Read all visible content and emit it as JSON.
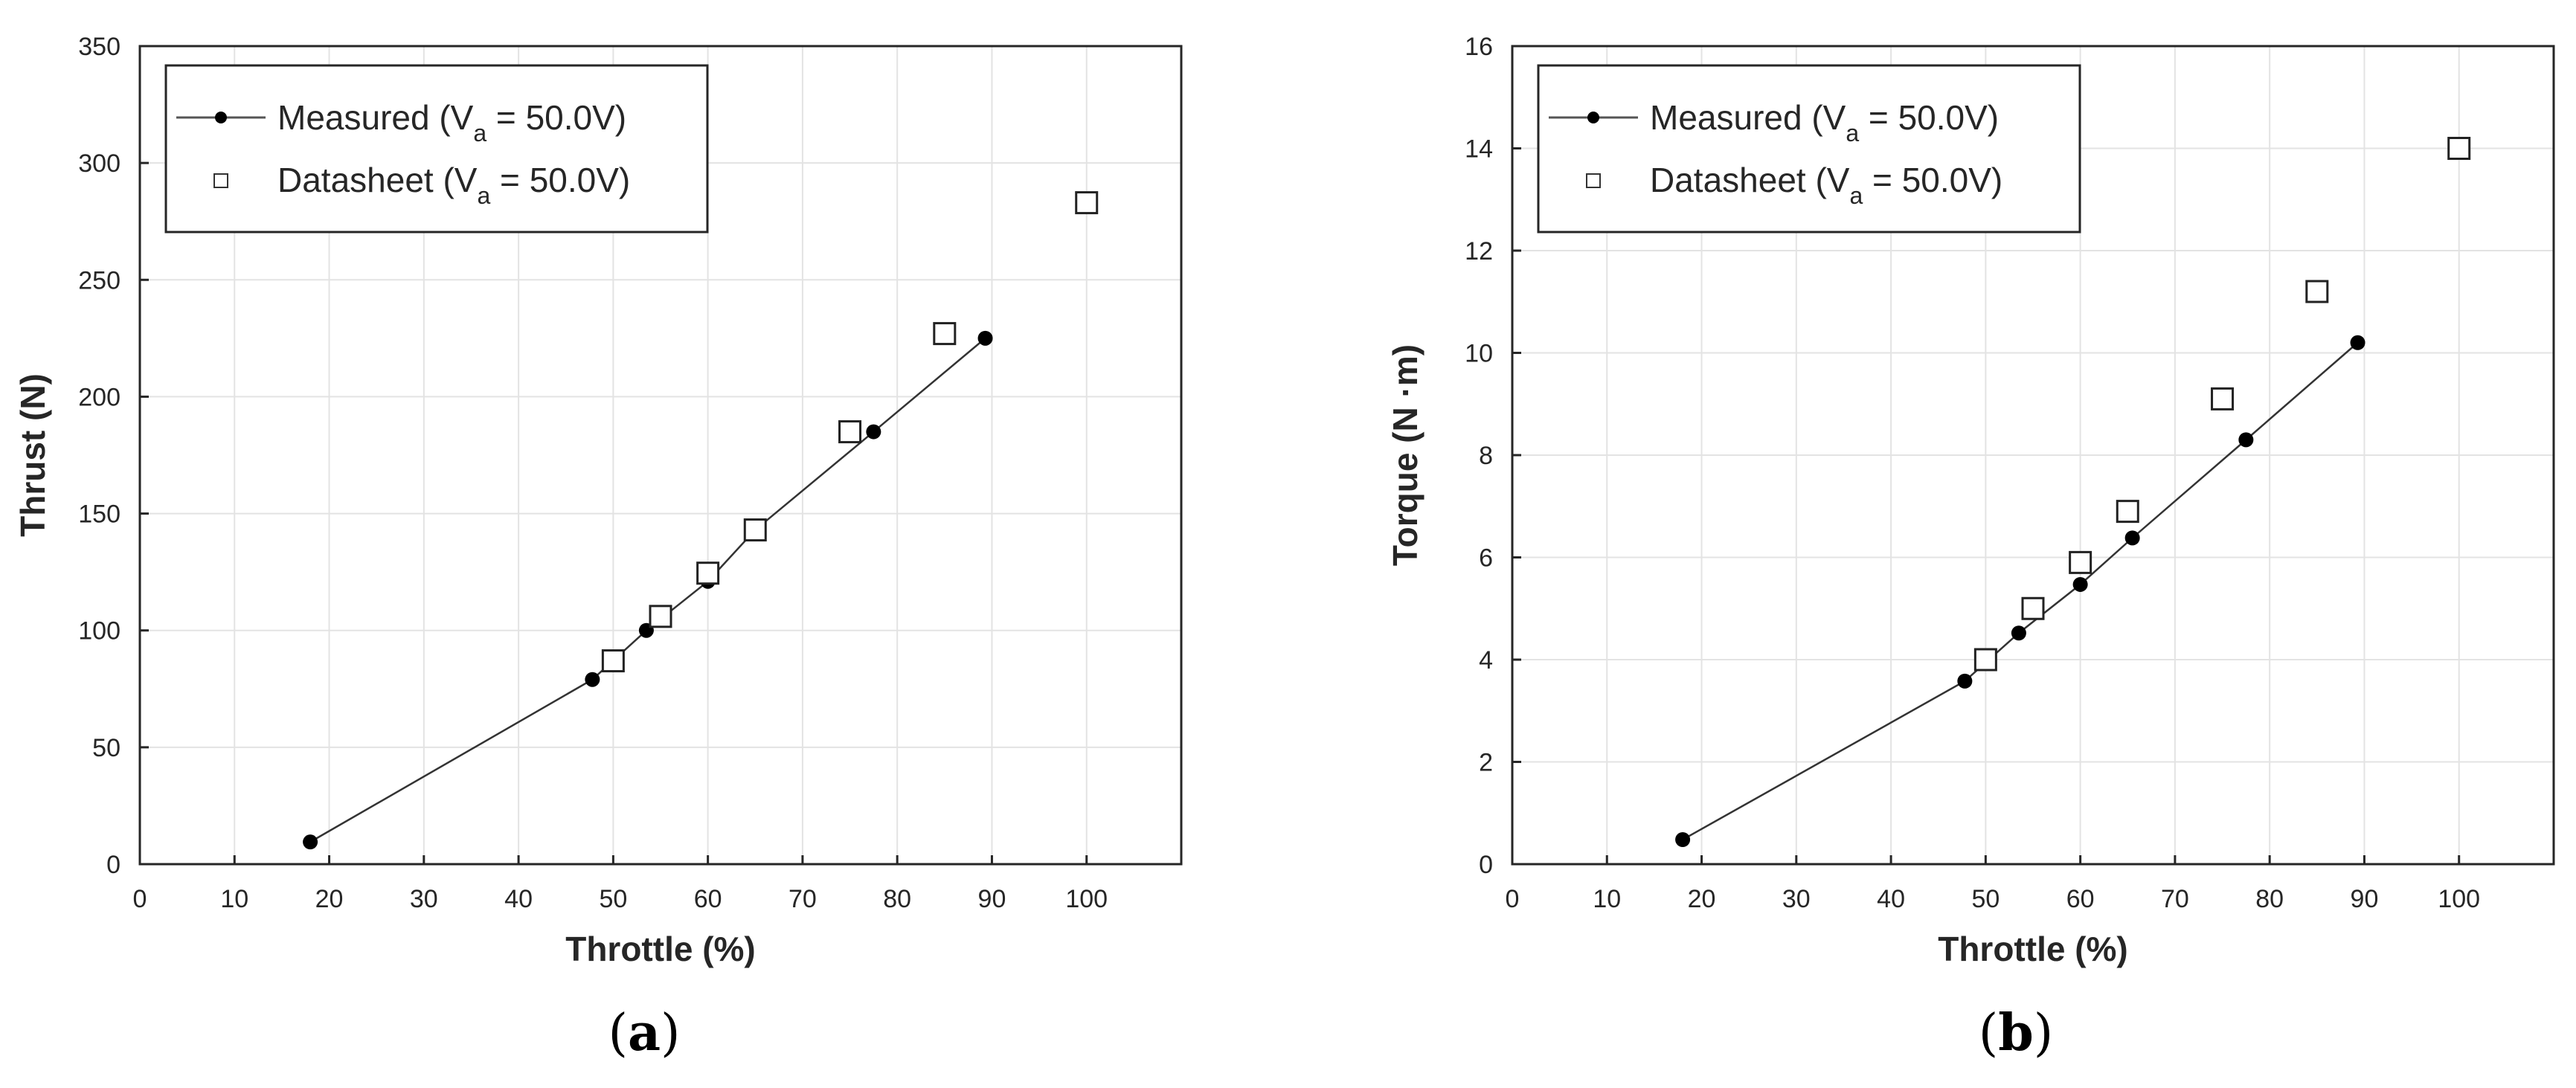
{
  "chart_data": [
    {
      "type": "scatter",
      "caption": {
        "open": "(",
        "letter": "a",
        "close": ")"
      },
      "xlabel": "Throttle (%)",
      "ylabel": "Thrust (N)",
      "xlim": [
        0,
        110
      ],
      "ylim": [
        0,
        350
      ],
      "xticks": [
        0,
        10,
        20,
        30,
        40,
        50,
        60,
        70,
        80,
        90,
        100
      ],
      "yticks": [
        0,
        50,
        100,
        150,
        200,
        250,
        300,
        350
      ],
      "grid": true,
      "legend_position": "top-left",
      "series": [
        {
          "name": "Measured (V",
          "name_sub": "a",
          "name_tail": " = 50.0V)",
          "marker": "filled-circle",
          "line": true,
          "x": [
            18,
            47.8,
            53.5,
            60,
            65,
            77.5,
            89.3
          ],
          "y": [
            9.5,
            79,
            100,
            121,
            143,
            185,
            225
          ]
        },
        {
          "name": "Datasheet (V",
          "name_sub": "a",
          "name_tail": " = 50.0V)",
          "marker": "open-square",
          "line": false,
          "x": [
            50,
            55,
            60,
            65,
            75,
            85,
            100
          ],
          "y": [
            87,
            106,
            124.5,
            143,
            185,
            227,
            283
          ]
        }
      ]
    },
    {
      "type": "scatter",
      "caption": {
        "open": "(",
        "letter": "b",
        "close": ")"
      },
      "xlabel": "Throttle (%)",
      "ylabel": "Torque (N ·m)",
      "xlim": [
        0,
        110
      ],
      "ylim": [
        0,
        16
      ],
      "xticks": [
        0,
        10,
        20,
        30,
        40,
        50,
        60,
        70,
        80,
        90,
        100
      ],
      "yticks": [
        0,
        2,
        4,
        6,
        8,
        10,
        12,
        14,
        16
      ],
      "grid": true,
      "legend_position": "top-left",
      "series": [
        {
          "name": "Measured (V",
          "name_sub": "a",
          "name_tail": " = 50.0V)",
          "marker": "filled-circle",
          "line": true,
          "x": [
            18,
            47.8,
            53.5,
            60,
            65.5,
            77.5,
            89.3
          ],
          "y": [
            0.48,
            3.58,
            4.52,
            5.47,
            6.38,
            8.3,
            10.2
          ]
        },
        {
          "name": "Datasheet (V",
          "name_sub": "a",
          "name_tail": " = 50.0V)",
          "marker": "open-square",
          "line": false,
          "x": [
            50,
            55,
            60,
            65,
            75,
            85,
            100
          ],
          "y": [
            4.0,
            5.0,
            5.9,
            6.9,
            9.1,
            11.2,
            14.0
          ]
        }
      ]
    }
  ]
}
